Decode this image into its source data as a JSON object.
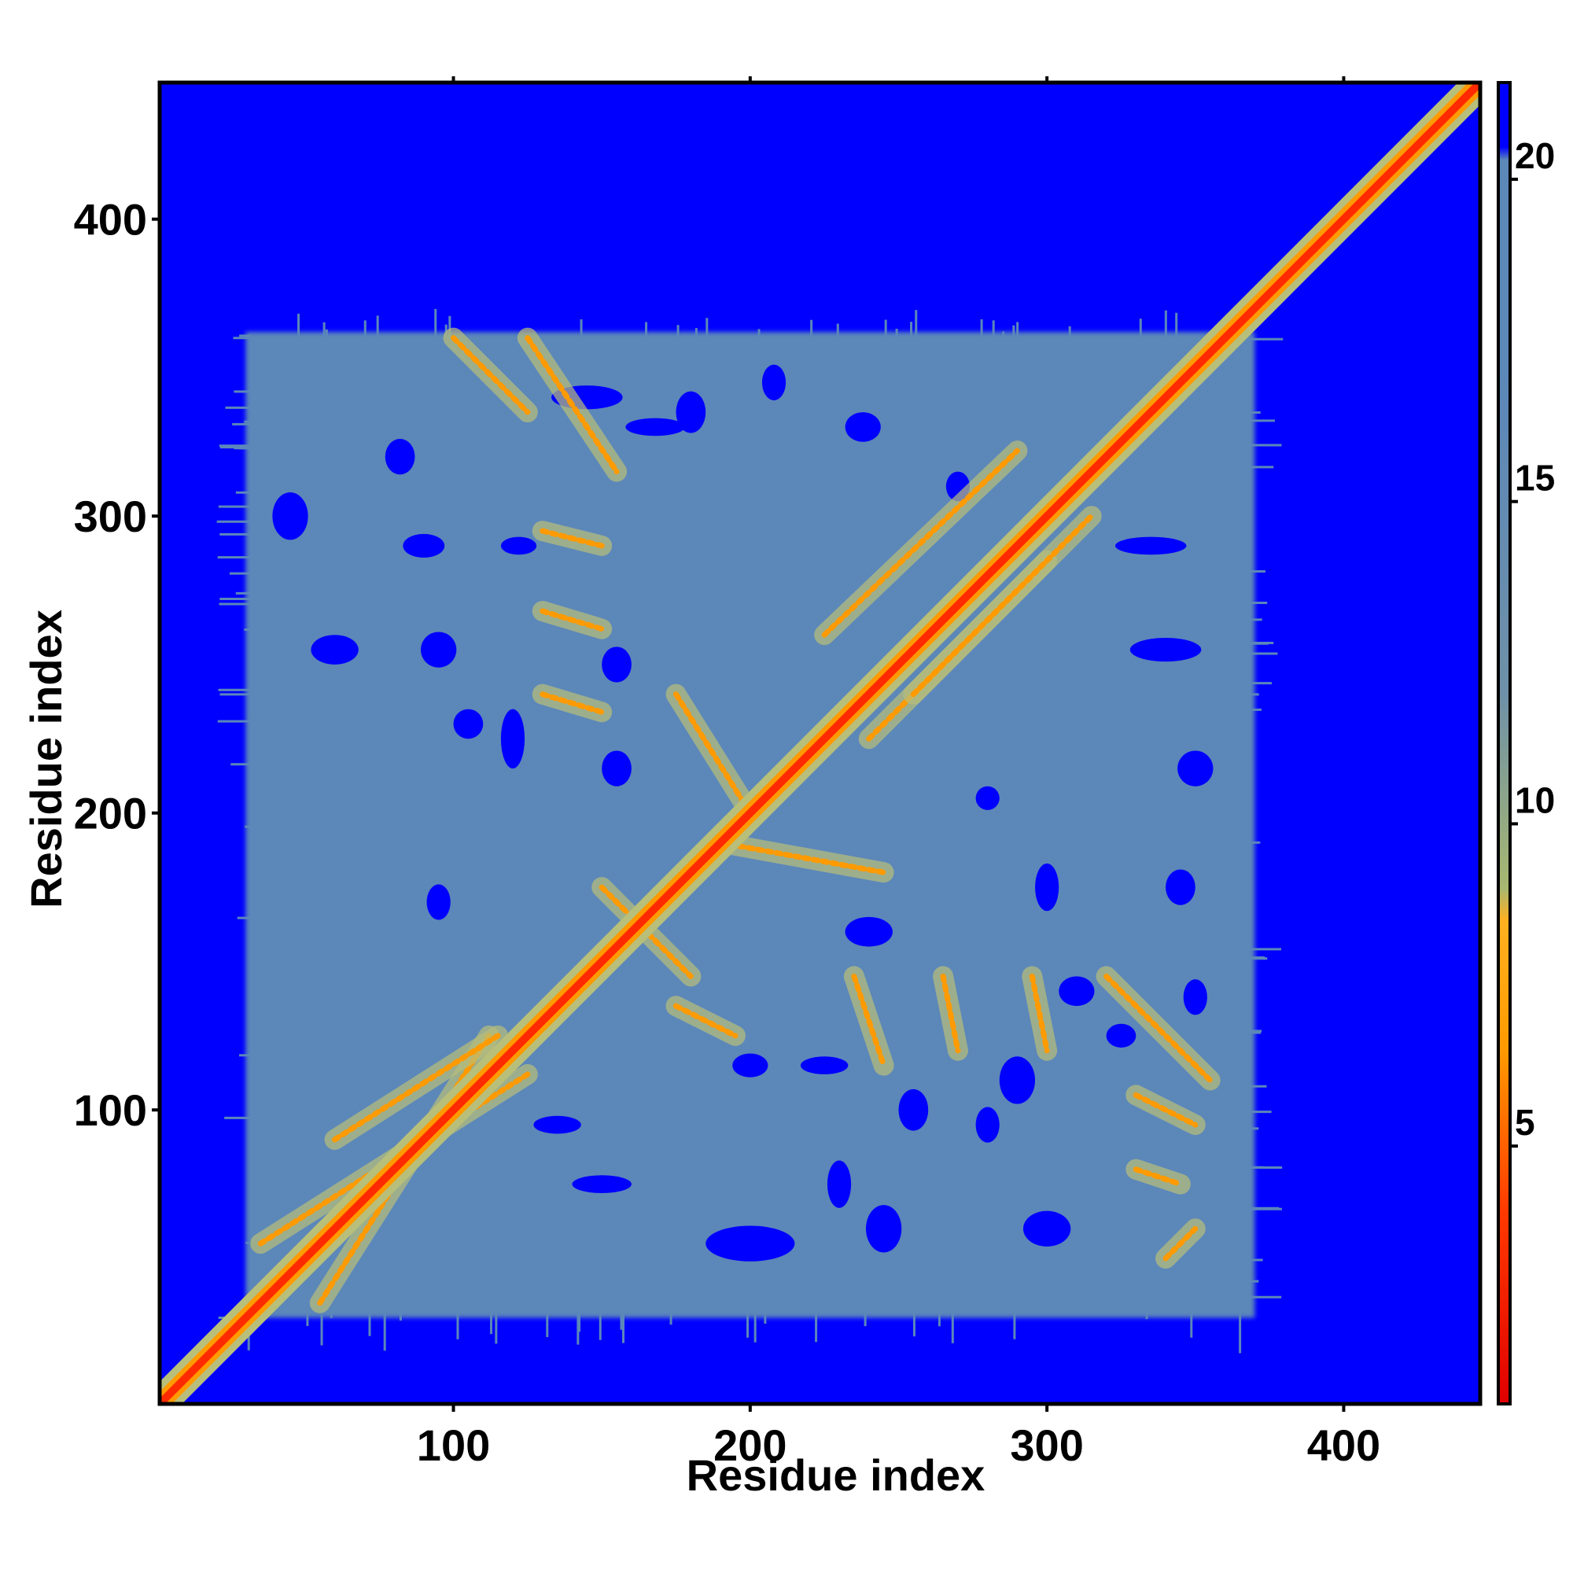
{
  "chart_data": {
    "type": "heatmap",
    "title": "",
    "xlabel": "Residue index",
    "ylabel": "Residue index",
    "xlim": [
      1,
      446
    ],
    "ylim": [
      1,
      446
    ],
    "x_ticks": [
      100,
      200,
      300,
      400
    ],
    "y_ticks": [
      100,
      200,
      300,
      400
    ],
    "x_tick_labels": [
      "100",
      "200",
      "300",
      "400"
    ],
    "y_tick_labels": [
      "100",
      "200",
      "300",
      "400"
    ],
    "colorbar": {
      "range": [
        1,
        21.5
      ],
      "ticks": [
        5,
        10,
        15,
        20
      ],
      "tick_labels": [
        "5",
        "10",
        "15",
        "20"
      ],
      "color_stops": [
        {
          "value": 1,
          "color": "#e00000"
        },
        {
          "value": 4,
          "color": "#ff3a00"
        },
        {
          "value": 6.5,
          "color": "#ff9a00"
        },
        {
          "value": 8.5,
          "color": "#ffb020"
        },
        {
          "value": 9,
          "color": "#a8b870"
        },
        {
          "value": 12,
          "color": "#6e90a8"
        },
        {
          "value": 17,
          "color": "#5b87b9"
        },
        {
          "value": 20.3,
          "color": "#5b87b9"
        },
        {
          "value": 20.5,
          "color": "#0000ff"
        },
        {
          "value": 21.5,
          "color": "#0000ff"
        }
      ]
    },
    "colors": {
      "background": "#0000ff",
      "domain": "#5b87b9",
      "contact_light": "#b8bf7a",
      "contact_mid": "#ff9a00",
      "diagonal": "#ff2a00"
    },
    "domain_extent": {
      "x": [
        30,
        370
      ],
      "y": [
        30,
        362
      ]
    },
    "diagonal": {
      "from": 1,
      "to": 446
    },
    "contact_bands": [
      {
        "from": [
          35,
          55
        ],
        "to": [
          125,
          112
        ]
      },
      {
        "from": [
          55,
          35
        ],
        "to": [
          112,
          125
        ]
      },
      {
        "from": [
          60,
          90
        ],
        "to": [
          115,
          125
        ]
      },
      {
        "from": [
          175,
          240
        ],
        "to": [
          200,
          200
        ]
      },
      {
        "from": [
          190,
          190
        ],
        "to": [
          245,
          180
        ]
      },
      {
        "from": [
          225,
          260
        ],
        "to": [
          290,
          322
        ]
      },
      {
        "from": [
          240,
          225
        ],
        "to": [
          300,
          285
        ]
      },
      {
        "from": [
          255,
          240
        ],
        "to": [
          315,
          300
        ]
      },
      {
        "from": [
          100,
          360
        ],
        "to": [
          125,
          335
        ]
      },
      {
        "from": [
          125,
          360
        ],
        "to": [
          155,
          315
        ]
      },
      {
        "from": [
          130,
          295
        ],
        "to": [
          150,
          290
        ]
      },
      {
        "from": [
          130,
          268
        ],
        "to": [
          150,
          262
        ]
      },
      {
        "from": [
          130,
          240
        ],
        "to": [
          150,
          234
        ]
      },
      {
        "from": [
          320,
          145
        ],
        "to": [
          355,
          110
        ]
      },
      {
        "from": [
          330,
          105
        ],
        "to": [
          350,
          95
        ]
      },
      {
        "from": [
          330,
          80
        ],
        "to": [
          345,
          75
        ]
      },
      {
        "from": [
          340,
          50
        ],
        "to": [
          350,
          60
        ]
      },
      {
        "from": [
          150,
          175
        ],
        "to": [
          180,
          145
        ]
      },
      {
        "from": [
          235,
          145
        ],
        "to": [
          245,
          115
        ]
      },
      {
        "from": [
          265,
          145
        ],
        "to": [
          270,
          120
        ]
      },
      {
        "from": [
          295,
          145
        ],
        "to": [
          300,
          120
        ]
      },
      {
        "from": [
          175,
          135
        ],
        "to": [
          195,
          125
        ]
      }
    ],
    "void_patches": [
      {
        "cx": 145,
        "cy": 340,
        "rx": 12,
        "ry": 4
      },
      {
        "cx": 168,
        "cy": 330,
        "rx": 10,
        "ry": 3
      },
      {
        "cx": 90,
        "cy": 290,
        "rx": 7,
        "ry": 4
      },
      {
        "cx": 122,
        "cy": 290,
        "rx": 6,
        "ry": 3
      },
      {
        "cx": 45,
        "cy": 300,
        "rx": 6,
        "ry": 8
      },
      {
        "cx": 95,
        "cy": 255,
        "rx": 6,
        "ry": 6
      },
      {
        "cx": 60,
        "cy": 255,
        "rx": 8,
        "ry": 5
      },
      {
        "cx": 120,
        "cy": 225,
        "rx": 4,
        "ry": 10
      },
      {
        "cx": 155,
        "cy": 250,
        "rx": 5,
        "ry": 6
      },
      {
        "cx": 208,
        "cy": 345,
        "rx": 4,
        "ry": 6
      },
      {
        "cx": 238,
        "cy": 330,
        "rx": 6,
        "ry": 5
      },
      {
        "cx": 270,
        "cy": 310,
        "rx": 4,
        "ry": 5
      },
      {
        "cx": 335,
        "cy": 290,
        "rx": 12,
        "ry": 3
      },
      {
        "cx": 340,
        "cy": 255,
        "rx": 12,
        "ry": 4
      },
      {
        "cx": 350,
        "cy": 215,
        "rx": 6,
        "ry": 6
      },
      {
        "cx": 345,
        "cy": 175,
        "rx": 5,
        "ry": 6
      },
      {
        "cx": 300,
        "cy": 175,
        "rx": 4,
        "ry": 8
      },
      {
        "cx": 240,
        "cy": 160,
        "rx": 8,
        "ry": 5
      },
      {
        "cx": 290,
        "cy": 110,
        "rx": 6,
        "ry": 8
      },
      {
        "cx": 280,
        "cy": 95,
        "rx": 4,
        "ry": 6
      },
      {
        "cx": 255,
        "cy": 100,
        "rx": 5,
        "ry": 7
      },
      {
        "cx": 225,
        "cy": 115,
        "rx": 8,
        "ry": 3
      },
      {
        "cx": 200,
        "cy": 115,
        "rx": 6,
        "ry": 4
      },
      {
        "cx": 135,
        "cy": 95,
        "rx": 8,
        "ry": 3
      },
      {
        "cx": 150,
        "cy": 75,
        "rx": 10,
        "ry": 3
      },
      {
        "cx": 200,
        "cy": 55,
        "rx": 15,
        "ry": 6
      },
      {
        "cx": 245,
        "cy": 60,
        "rx": 6,
        "ry": 8
      },
      {
        "cx": 300,
        "cy": 60,
        "rx": 8,
        "ry": 6
      },
      {
        "cx": 230,
        "cy": 75,
        "rx": 4,
        "ry": 8
      },
      {
        "cx": 95,
        "cy": 170,
        "rx": 4,
        "ry": 6
      },
      {
        "cx": 155,
        "cy": 215,
        "rx": 5,
        "ry": 6
      },
      {
        "cx": 105,
        "cy": 230,
        "rx": 5,
        "ry": 5
      },
      {
        "cx": 310,
        "cy": 140,
        "rx": 6,
        "ry": 5
      },
      {
        "cx": 280,
        "cy": 205,
        "rx": 4,
        "ry": 4
      },
      {
        "cx": 325,
        "cy": 125,
        "rx": 5,
        "ry": 4
      },
      {
        "cx": 350,
        "cy": 138,
        "rx": 4,
        "ry": 6
      },
      {
        "cx": 82,
        "cy": 320,
        "rx": 5,
        "ry": 6
      },
      {
        "cx": 180,
        "cy": 335,
        "rx": 5,
        "ry": 7
      }
    ]
  }
}
